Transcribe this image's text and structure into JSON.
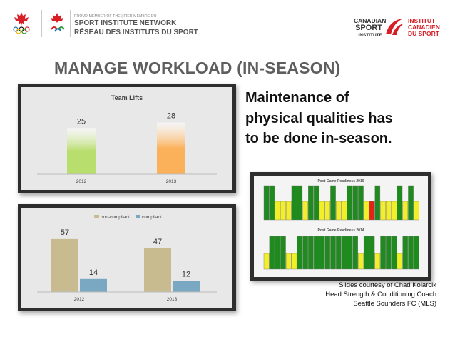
{
  "header": {
    "network_small": "PROUD MEMBER OF THE | FIER MEMBRE DU",
    "network_line1": "SPORT INSTITUTE NETWORK",
    "network_line2": "RÉSEAU DES INSTITUTS DU SPORT",
    "csi_en": [
      "CANADIAN",
      "SPORT",
      "INSTITUTE"
    ],
    "csi_fr": [
      "INSTITUT",
      "CANADIEN",
      "DU SPORT"
    ]
  },
  "title": "MANAGE WORKLOAD (IN-SEASON)",
  "bullet": "Maintenance of physical qualities has to be done in-season.",
  "credit": {
    "line1": "Slides courtesy of Chad Kolarcik",
    "line2": "Head Strength & Conditioning Coach",
    "line3": "Seattle Sounders FC (MLS)"
  },
  "colors": {
    "title": "#5e5e5e",
    "lifts_2012": "#b8de6e",
    "lifts_2013": "#fbb15a",
    "non_compliant": "#c9bb90",
    "compliant": "#7aa8c2",
    "readiness_green": "#1f8b1f",
    "readiness_yellow": "#f2ee2a",
    "readiness_red": "#e2231a"
  },
  "chart_data": [
    {
      "type": "bar",
      "title": "Team Lifts",
      "categories": [
        "2012",
        "2013"
      ],
      "values": [
        25,
        28
      ],
      "ylim": [
        0,
        32
      ]
    },
    {
      "type": "bar",
      "title": "",
      "categories": [
        "2012",
        "2013"
      ],
      "series": [
        {
          "name": "non-compliant",
          "values": [
            57,
            47
          ]
        },
        {
          "name": "compliant",
          "values": [
            14,
            12
          ]
        }
      ],
      "ylim": [
        0,
        60
      ],
      "legend": "top"
    },
    {
      "type": "heatmap",
      "title": "Post Game Readiness 2010",
      "cells": [
        "G",
        "G",
        "Y",
        "Y",
        "Y",
        "G",
        "G",
        "Y",
        "G",
        "G",
        "Y",
        "Y",
        "G",
        "Y",
        "Y",
        "G",
        "G",
        "G",
        "Y",
        "R",
        "G",
        "Y",
        "Y",
        "Y",
        "G",
        "Y",
        "G",
        "Y"
      ]
    },
    {
      "type": "heatmap",
      "title": "Post Game Readiness 2014",
      "cells": [
        "Y",
        "G",
        "G",
        "G",
        "Y",
        "Y",
        "G",
        "G",
        "G",
        "G",
        "G",
        "G",
        "G",
        "G",
        "G",
        "G",
        "G",
        "Y",
        "G",
        "G",
        "Y",
        "G",
        "G",
        "G",
        "Y",
        "G",
        "G",
        "G"
      ]
    }
  ]
}
